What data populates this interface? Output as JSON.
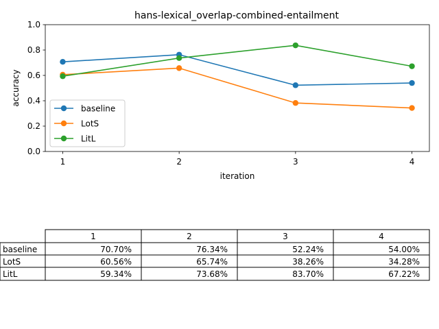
{
  "chart_data": {
    "type": "line",
    "title": "hans-lexical_overlap-combined-entailment",
    "xlabel": "iteration",
    "ylabel": "accuracy",
    "x": [
      1,
      2,
      3,
      4
    ],
    "ylim": [
      0.0,
      1.0
    ],
    "xlim": [
      0.85,
      4.15
    ],
    "yticks": [
      "0.0",
      "0.2",
      "0.4",
      "0.6",
      "0.8",
      "1.0"
    ],
    "xticks": [
      "1",
      "2",
      "3",
      "4"
    ],
    "grid": false,
    "legend_position": "center-left",
    "series": [
      {
        "name": "baseline",
        "color": "#1f77b4",
        "values": [
          0.707,
          0.7634,
          0.5224,
          0.54
        ]
      },
      {
        "name": "LotS",
        "color": "#ff7f0e",
        "values": [
          0.6056,
          0.6574,
          0.3826,
          0.3428
        ]
      },
      {
        "name": "LitL",
        "color": "#2ca02c",
        "values": [
          0.5934,
          0.7368,
          0.837,
          0.6722
        ]
      }
    ]
  },
  "table": {
    "columns": [
      "1",
      "2",
      "3",
      "4"
    ],
    "rows": [
      {
        "label": "baseline",
        "cells": [
          "70.70%",
          "76.34%",
          "52.24%",
          "54.00%"
        ]
      },
      {
        "label": "LotS",
        "cells": [
          "60.56%",
          "65.74%",
          "38.26%",
          "34.28%"
        ]
      },
      {
        "label": "LitL",
        "cells": [
          "59.34%",
          "73.68%",
          "83.70%",
          "67.22%"
        ]
      }
    ]
  }
}
